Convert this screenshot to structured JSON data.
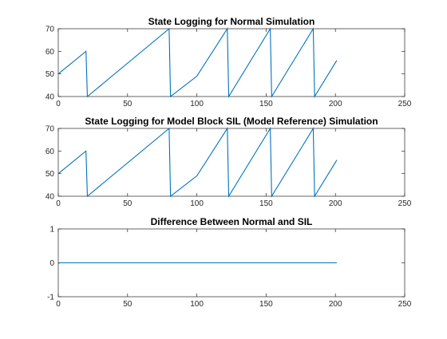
{
  "chart_data": [
    {
      "type": "line",
      "title": "State Logging for Normal Simulation",
      "xlabel": "",
      "ylabel": "",
      "xlim": [
        0,
        250
      ],
      "ylim": [
        40,
        70
      ],
      "xticks": [
        0,
        50,
        100,
        150,
        200,
        250
      ],
      "yticks": [
        40,
        50,
        60,
        70
      ],
      "grid": false,
      "series": [
        {
          "color": "#0072BD",
          "x": [
            0,
            20,
            21,
            80,
            81,
            100,
            122,
            123,
            153,
            154,
            184,
            185,
            201
          ],
          "y": [
            50,
            60,
            40,
            70,
            40,
            49,
            70,
            40,
            70,
            40,
            70,
            40,
            56
          ]
        }
      ]
    },
    {
      "type": "line",
      "title": "State Logging for Model Block SIL (Model Reference) Simulation",
      "xlabel": "",
      "ylabel": "",
      "xlim": [
        0,
        250
      ],
      "ylim": [
        40,
        70
      ],
      "xticks": [
        0,
        50,
        100,
        150,
        200,
        250
      ],
      "yticks": [
        40,
        50,
        60,
        70
      ],
      "grid": false,
      "series": [
        {
          "color": "#0072BD",
          "x": [
            0,
            20,
            21,
            80,
            81,
            100,
            122,
            123,
            153,
            154,
            184,
            185,
            201
          ],
          "y": [
            50,
            60,
            40,
            70,
            40,
            49,
            70,
            40,
            70,
            40,
            70,
            40,
            56
          ]
        }
      ]
    },
    {
      "type": "line",
      "title": "Difference Between Normal and SIL",
      "xlabel": "",
      "ylabel": "",
      "xlim": [
        0,
        250
      ],
      "ylim": [
        -1,
        1
      ],
      "xticks": [
        0,
        50,
        100,
        150,
        200,
        250
      ],
      "yticks": [
        -1,
        0,
        1
      ],
      "grid": false,
      "series": [
        {
          "color": "#0072BD",
          "x": [
            0,
            1,
            201
          ],
          "y": [
            -0.02,
            0,
            0
          ]
        }
      ]
    }
  ]
}
